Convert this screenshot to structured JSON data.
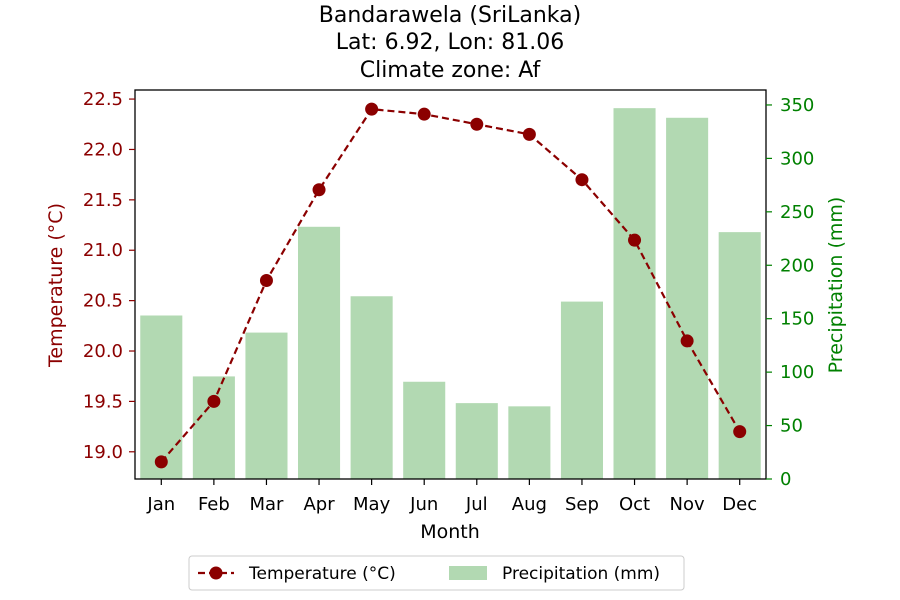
{
  "chart_data": {
    "type": "bar+line",
    "title_lines": [
      "Bandarawela (SriLanka)",
      "Lat: 6.92, Lon: 81.06",
      "Climate zone: Af"
    ],
    "xlabel": "Month",
    "ylabel_left": "Temperature (°C)",
    "ylabel_right": "Precipitation (mm)",
    "categories": [
      "Jan",
      "Feb",
      "Mar",
      "Apr",
      "May",
      "Jun",
      "Jul",
      "Aug",
      "Sep",
      "Oct",
      "Nov",
      "Dec"
    ],
    "temperature": {
      "name": "Temperature (°C)",
      "color": "#8b0000",
      "values": [
        18.9,
        19.5,
        20.7,
        21.6,
        22.4,
        22.35,
        22.25,
        22.15,
        21.7,
        21.1,
        20.1,
        19.2
      ]
    },
    "precipitation": {
      "name": "Precipitation (mm)",
      "color": "#b2d9b2",
      "values": [
        153,
        96,
        137,
        236,
        171,
        91,
        71,
        68,
        166,
        347,
        338,
        231
      ]
    },
    "ylim_left": [
      18.73,
      22.59
    ],
    "ylim_right": [
      0,
      364
    ],
    "yticks_left": [
      19.0,
      19.5,
      20.0,
      20.5,
      21.0,
      21.5,
      22.0,
      22.5
    ],
    "yticks_left_labels": [
      "19.0",
      "19.5",
      "20.0",
      "20.5",
      "21.0",
      "21.5",
      "22.0",
      "22.5"
    ],
    "yticks_right": [
      0,
      50,
      100,
      150,
      200,
      250,
      300,
      350
    ],
    "yticks_right_labels": [
      "0",
      "50",
      "100",
      "150",
      "200",
      "250",
      "300",
      "350"
    ],
    "left_axis_color": "#8b0000",
    "right_axis_color": "#008000",
    "legend_placement": "bottom-center",
    "grid": false
  }
}
